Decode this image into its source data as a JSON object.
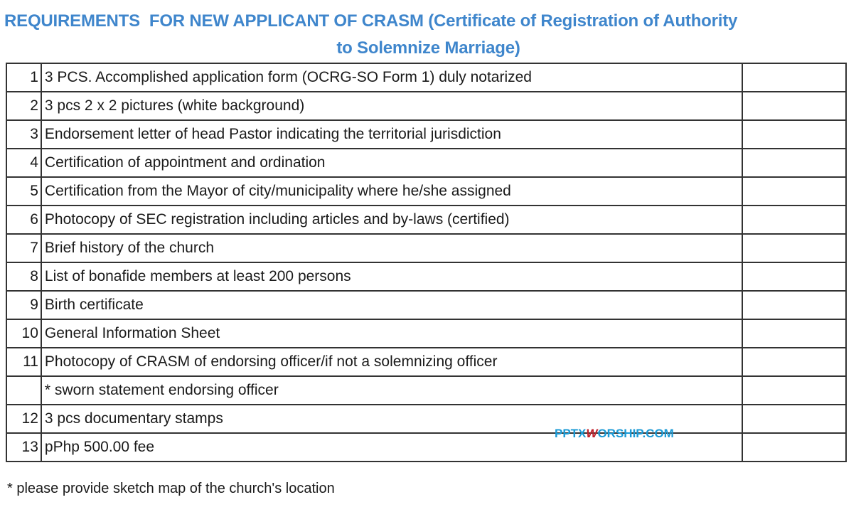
{
  "title": {
    "line1": "REQUIREMENTS  FOR NEW APPLICANT OF CRASM (Certificate of Registration of Authority",
    "line2": "to Solemnize Marriage)"
  },
  "rows": [
    {
      "num": "1",
      "text": "3 PCS. Accomplished application form (OCRG-SO Form 1) duly notarized"
    },
    {
      "num": "2",
      "text": "3 pcs 2 x 2 pictures (white background)"
    },
    {
      "num": "3",
      "text": "Endorsement letter of head Pastor indicating the territorial jurisdiction"
    },
    {
      "num": "4",
      "text": "Certification of appointment and ordination"
    },
    {
      "num": "5",
      "text": "Certification from the Mayor of city/municipality where he/she assigned"
    },
    {
      "num": "6",
      "text": "Photocopy of SEC registration including articles and by-laws (certified)"
    },
    {
      "num": "7",
      "text": "Brief history of the church"
    },
    {
      "num": "8",
      "text": "List of bonafide members at least 200 persons"
    },
    {
      "num": "9",
      "text": "Birth certificate"
    },
    {
      "num": "10",
      "text": "General Information Sheet"
    },
    {
      "num": "11",
      "text": "Photocopy of CRASM of endorsing officer/if not a solemnizing officer"
    },
    {
      "num": "",
      "text": "*  sworn statement endorsing officer"
    },
    {
      "num": "12",
      "text": "3 pcs documentary stamps"
    },
    {
      "num": "13",
      "text": "pPhp 500.00 fee"
    }
  ],
  "footer": "* please provide sketch map of the church's location",
  "watermark": {
    "pre": "PPTX",
    "w": "W",
    "post": "ORSHIP.COM"
  },
  "colors": {
    "title": "#3f86cc",
    "watermark": "#1a9ad6"
  }
}
